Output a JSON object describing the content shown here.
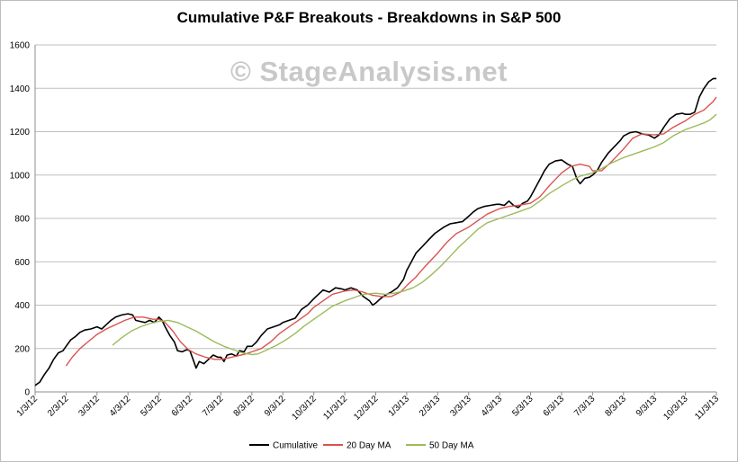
{
  "chart_data": {
    "type": "line",
    "title": "Cumulative P&F Breakouts - Breakdowns in S&P 500",
    "watermark": "© StageAnalysis.net",
    "xlabel": "",
    "ylabel": "",
    "ylim": [
      0,
      1600
    ],
    "yticks": [
      0,
      200,
      400,
      600,
      800,
      1000,
      1200,
      1400,
      1600
    ],
    "grid": true,
    "legend_position": "bottom",
    "x_tick_labels": [
      "1/3/12",
      "2/3/12",
      "3/3/12",
      "4/3/12",
      "5/3/12",
      "6/3/12",
      "7/3/12",
      "8/3/12",
      "9/3/12",
      "10/3/12",
      "11/3/12",
      "12/3/12",
      "1/3/13",
      "2/3/13",
      "3/3/13",
      "4/3/13",
      "5/3/13",
      "6/3/13",
      "7/3/13",
      "8/3/13",
      "9/3/13",
      "10/3/13",
      "11/3/13"
    ],
    "x_range_months": [
      0,
      22
    ],
    "series": [
      {
        "name": "Cumulative",
        "color": "#000000",
        "points": [
          [
            0,
            30
          ],
          [
            0.15,
            45
          ],
          [
            0.3,
            80
          ],
          [
            0.45,
            110
          ],
          [
            0.6,
            150
          ],
          [
            0.75,
            180
          ],
          [
            0.9,
            190
          ],
          [
            1.0,
            210
          ],
          [
            1.15,
            240
          ],
          [
            1.3,
            255
          ],
          [
            1.45,
            275
          ],
          [
            1.6,
            285
          ],
          [
            1.8,
            290
          ],
          [
            2.0,
            300
          ],
          [
            2.15,
            290
          ],
          [
            2.3,
            310
          ],
          [
            2.45,
            330
          ],
          [
            2.6,
            345
          ],
          [
            2.8,
            355
          ],
          [
            3.0,
            360
          ],
          [
            3.15,
            355
          ],
          [
            3.25,
            330
          ],
          [
            3.4,
            325
          ],
          [
            3.55,
            320
          ],
          [
            3.7,
            330
          ],
          [
            3.85,
            320
          ],
          [
            4.0,
            345
          ],
          [
            4.1,
            330
          ],
          [
            4.2,
            300
          ],
          [
            4.35,
            260
          ],
          [
            4.5,
            230
          ],
          [
            4.6,
            190
          ],
          [
            4.75,
            185
          ],
          [
            4.9,
            195
          ],
          [
            5.0,
            190
          ],
          [
            5.1,
            150
          ],
          [
            5.2,
            110
          ],
          [
            5.3,
            140
          ],
          [
            5.45,
            130
          ],
          [
            5.6,
            150
          ],
          [
            5.75,
            170
          ],
          [
            5.9,
            160
          ],
          [
            6.0,
            160
          ],
          [
            6.1,
            140
          ],
          [
            6.2,
            170
          ],
          [
            6.35,
            175
          ],
          [
            6.5,
            165
          ],
          [
            6.6,
            190
          ],
          [
            6.75,
            185
          ],
          [
            6.85,
            210
          ],
          [
            7.0,
            210
          ],
          [
            7.15,
            230
          ],
          [
            7.3,
            260
          ],
          [
            7.5,
            290
          ],
          [
            7.7,
            300
          ],
          [
            7.9,
            310
          ],
          [
            8.0,
            320
          ],
          [
            8.2,
            330
          ],
          [
            8.4,
            340
          ],
          [
            8.6,
            380
          ],
          [
            8.8,
            400
          ],
          [
            9.0,
            430
          ],
          [
            9.15,
            450
          ],
          [
            9.3,
            470
          ],
          [
            9.5,
            460
          ],
          [
            9.7,
            480
          ],
          [
            9.9,
            475
          ],
          [
            10.0,
            470
          ],
          [
            10.2,
            480
          ],
          [
            10.4,
            470
          ],
          [
            10.6,
            440
          ],
          [
            10.8,
            420
          ],
          [
            10.9,
            400
          ],
          [
            11.0,
            410
          ],
          [
            11.15,
            430
          ],
          [
            11.3,
            445
          ],
          [
            11.5,
            460
          ],
          [
            11.7,
            480
          ],
          [
            11.9,
            520
          ],
          [
            12.0,
            560
          ],
          [
            12.15,
            600
          ],
          [
            12.3,
            640
          ],
          [
            12.5,
            670
          ],
          [
            12.7,
            700
          ],
          [
            12.9,
            730
          ],
          [
            13.0,
            740
          ],
          [
            13.2,
            760
          ],
          [
            13.4,
            775
          ],
          [
            13.6,
            780
          ],
          [
            13.8,
            785
          ],
          [
            14.0,
            810
          ],
          [
            14.15,
            830
          ],
          [
            14.3,
            845
          ],
          [
            14.5,
            855
          ],
          [
            14.7,
            860
          ],
          [
            14.9,
            865
          ],
          [
            15.0,
            865
          ],
          [
            15.15,
            860
          ],
          [
            15.3,
            880
          ],
          [
            15.45,
            860
          ],
          [
            15.6,
            850
          ],
          [
            15.75,
            870
          ],
          [
            15.9,
            880
          ],
          [
            16.0,
            900
          ],
          [
            16.15,
            940
          ],
          [
            16.3,
            980
          ],
          [
            16.45,
            1020
          ],
          [
            16.6,
            1050
          ],
          [
            16.8,
            1065
          ],
          [
            17.0,
            1070
          ],
          [
            17.1,
            1060
          ],
          [
            17.2,
            1050
          ],
          [
            17.35,
            1040
          ],
          [
            17.5,
            980
          ],
          [
            17.6,
            960
          ],
          [
            17.75,
            985
          ],
          [
            17.9,
            990
          ],
          [
            18.0,
            1000
          ],
          [
            18.15,
            1020
          ],
          [
            18.3,
            1060
          ],
          [
            18.5,
            1100
          ],
          [
            18.7,
            1130
          ],
          [
            18.9,
            1160
          ],
          [
            19.0,
            1180
          ],
          [
            19.2,
            1195
          ],
          [
            19.4,
            1200
          ],
          [
            19.6,
            1190
          ],
          [
            19.8,
            1185
          ],
          [
            20.0,
            1170
          ],
          [
            20.15,
            1185
          ],
          [
            20.3,
            1220
          ],
          [
            20.5,
            1260
          ],
          [
            20.7,
            1280
          ],
          [
            20.9,
            1285
          ],
          [
            21.0,
            1280
          ],
          [
            21.15,
            1280
          ],
          [
            21.3,
            1290
          ],
          [
            21.45,
            1360
          ],
          [
            21.6,
            1400
          ],
          [
            21.75,
            1430
          ],
          [
            21.9,
            1445
          ],
          [
            22.0,
            1445
          ]
        ]
      },
      {
        "name": "20 Day MA",
        "color": "#d9534f",
        "points": [
          [
            1.0,
            120
          ],
          [
            1.2,
            160
          ],
          [
            1.45,
            200
          ],
          [
            1.7,
            230
          ],
          [
            2.0,
            265
          ],
          [
            2.3,
            290
          ],
          [
            2.6,
            310
          ],
          [
            2.9,
            330
          ],
          [
            3.2,
            345
          ],
          [
            3.5,
            345
          ],
          [
            3.8,
            335
          ],
          [
            4.0,
            335
          ],
          [
            4.2,
            320
          ],
          [
            4.45,
            280
          ],
          [
            4.7,
            230
          ],
          [
            4.95,
            195
          ],
          [
            5.2,
            175
          ],
          [
            5.5,
            160
          ],
          [
            5.8,
            150
          ],
          [
            6.0,
            150
          ],
          [
            6.2,
            155
          ],
          [
            6.5,
            165
          ],
          [
            6.8,
            175
          ],
          [
            7.0,
            185
          ],
          [
            7.3,
            200
          ],
          [
            7.6,
            230
          ],
          [
            7.9,
            270
          ],
          [
            8.2,
            300
          ],
          [
            8.5,
            330
          ],
          [
            8.8,
            360
          ],
          [
            9.0,
            390
          ],
          [
            9.3,
            420
          ],
          [
            9.6,
            450
          ],
          [
            10.0,
            465
          ],
          [
            10.3,
            470
          ],
          [
            10.6,
            460
          ],
          [
            10.9,
            445
          ],
          [
            11.2,
            440
          ],
          [
            11.5,
            440
          ],
          [
            11.8,
            460
          ],
          [
            12.0,
            490
          ],
          [
            12.3,
            530
          ],
          [
            12.6,
            580
          ],
          [
            13.0,
            640
          ],
          [
            13.3,
            690
          ],
          [
            13.6,
            730
          ],
          [
            14.0,
            760
          ],
          [
            14.3,
            790
          ],
          [
            14.6,
            820
          ],
          [
            15.0,
            845
          ],
          [
            15.3,
            855
          ],
          [
            15.6,
            860
          ],
          [
            16.0,
            870
          ],
          [
            16.3,
            900
          ],
          [
            16.6,
            950
          ],
          [
            17.0,
            1010
          ],
          [
            17.3,
            1040
          ],
          [
            17.6,
            1050
          ],
          [
            17.9,
            1040
          ],
          [
            18.0,
            1020
          ],
          [
            18.3,
            1020
          ],
          [
            18.6,
            1060
          ],
          [
            19.0,
            1120
          ],
          [
            19.3,
            1170
          ],
          [
            19.6,
            1190
          ],
          [
            20.0,
            1185
          ],
          [
            20.3,
            1190
          ],
          [
            20.6,
            1220
          ],
          [
            21.0,
            1250
          ],
          [
            21.3,
            1280
          ],
          [
            21.6,
            1300
          ],
          [
            21.9,
            1340
          ],
          [
            22.0,
            1360
          ]
        ]
      },
      {
        "name": "50 Day MA",
        "color": "#9bbb59",
        "points": [
          [
            2.5,
            215
          ],
          [
            2.8,
            250
          ],
          [
            3.1,
            280
          ],
          [
            3.4,
            300
          ],
          [
            3.7,
            315
          ],
          [
            4.0,
            325
          ],
          [
            4.3,
            330
          ],
          [
            4.6,
            320
          ],
          [
            4.9,
            300
          ],
          [
            5.2,
            280
          ],
          [
            5.5,
            255
          ],
          [
            5.8,
            230
          ],
          [
            6.1,
            210
          ],
          [
            6.4,
            195
          ],
          [
            6.7,
            180
          ],
          [
            7.0,
            172
          ],
          [
            7.2,
            175
          ],
          [
            7.5,
            195
          ],
          [
            7.8,
            215
          ],
          [
            8.1,
            240
          ],
          [
            8.4,
            270
          ],
          [
            8.7,
            305
          ],
          [
            9.0,
            335
          ],
          [
            9.3,
            365
          ],
          [
            9.6,
            395
          ],
          [
            10.0,
            420
          ],
          [
            10.3,
            435
          ],
          [
            10.6,
            450
          ],
          [
            11.0,
            455
          ],
          [
            11.3,
            450
          ],
          [
            11.6,
            455
          ],
          [
            11.9,
            465
          ],
          [
            12.2,
            480
          ],
          [
            12.5,
            505
          ],
          [
            12.8,
            540
          ],
          [
            13.1,
            580
          ],
          [
            13.4,
            625
          ],
          [
            13.7,
            670
          ],
          [
            14.0,
            710
          ],
          [
            14.3,
            750
          ],
          [
            14.6,
            780
          ],
          [
            15.0,
            800
          ],
          [
            15.3,
            815
          ],
          [
            15.6,
            830
          ],
          [
            16.0,
            850
          ],
          [
            16.3,
            880
          ],
          [
            16.6,
            915
          ],
          [
            17.0,
            950
          ],
          [
            17.3,
            975
          ],
          [
            17.6,
            995
          ],
          [
            18.0,
            1010
          ],
          [
            18.3,
            1030
          ],
          [
            18.6,
            1055
          ],
          [
            19.0,
            1080
          ],
          [
            19.3,
            1095
          ],
          [
            19.6,
            1110
          ],
          [
            20.0,
            1130
          ],
          [
            20.3,
            1150
          ],
          [
            20.6,
            1180
          ],
          [
            21.0,
            1210
          ],
          [
            21.3,
            1225
          ],
          [
            21.6,
            1240
          ],
          [
            21.8,
            1255
          ],
          [
            22.0,
            1280
          ]
        ]
      }
    ]
  }
}
